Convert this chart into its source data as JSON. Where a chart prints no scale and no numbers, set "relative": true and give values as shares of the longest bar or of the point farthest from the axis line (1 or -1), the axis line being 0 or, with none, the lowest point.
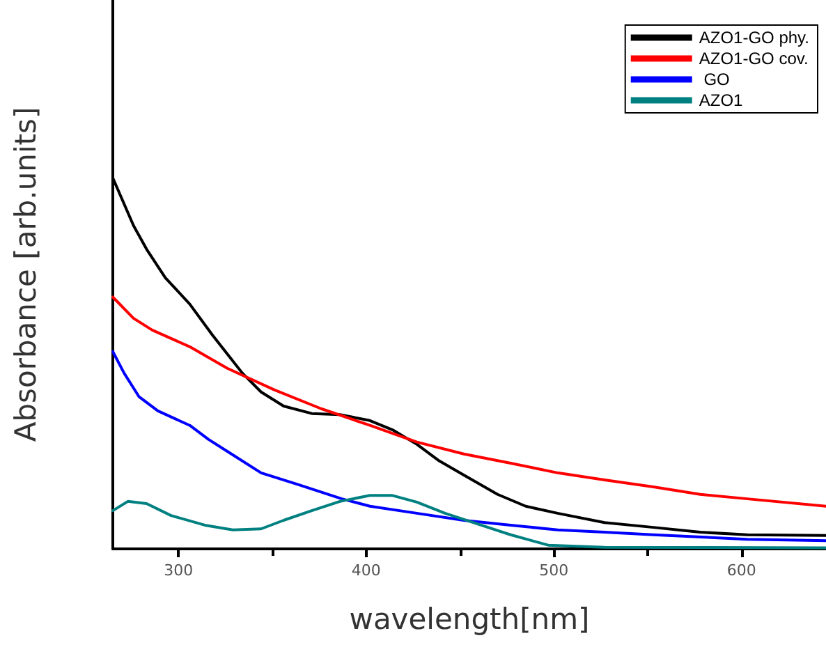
{
  "chart_data": {
    "type": "line",
    "relative": true,
    "xlabel": "wavelength[nm]",
    "ylabel": "Absorbance [arb.units]",
    "xlim": [
      265,
      645
    ],
    "xticks": [
      300,
      400,
      500,
      600
    ],
    "legend": "top right",
    "grid": false,
    "marker": "none",
    "line_style": "solid",
    "series": [
      {
        "name": "AZO1-GO phy.",
        "color": "#000000",
        "x": [
          265,
          276,
          283,
          293,
          306,
          318,
          334,
          344,
          356,
          371,
          386,
          402,
          414,
          427,
          439,
          452,
          470,
          485,
          502,
          527,
          553,
          578,
          603,
          645
        ],
        "values": [
          1.0,
          0.872,
          0.808,
          0.731,
          0.66,
          0.577,
          0.474,
          0.423,
          0.385,
          0.365,
          0.362,
          0.346,
          0.321,
          0.282,
          0.237,
          0.199,
          0.147,
          0.115,
          0.096,
          0.071,
          0.058,
          0.045,
          0.038,
          0.036
        ]
      },
      {
        "name": "AZO1-GO cov.",
        "color": "#ff0000",
        "x": [
          265,
          276,
          286,
          306,
          326,
          351,
          376,
          402,
          427,
          452,
          477,
          502,
          527,
          553,
          578,
          603,
          645
        ],
        "values": [
          0.679,
          0.622,
          0.59,
          0.545,
          0.487,
          0.429,
          0.378,
          0.333,
          0.288,
          0.256,
          0.231,
          0.205,
          0.186,
          0.167,
          0.147,
          0.135,
          0.115
        ]
      },
      {
        "name": " GO",
        "color": "#0000ff",
        "x": [
          265,
          271,
          279,
          289,
          306,
          316,
          326,
          344,
          364,
          387,
          402,
          427,
          452,
          477,
          502,
          527,
          553,
          603,
          645
        ],
        "values": [
          0.532,
          0.474,
          0.41,
          0.372,
          0.333,
          0.295,
          0.263,
          0.205,
          0.173,
          0.135,
          0.115,
          0.096,
          0.077,
          0.064,
          0.051,
          0.045,
          0.038,
          0.026,
          0.022
        ]
      },
      {
        "name": "AZO1",
        "color": "#008080",
        "x": [
          265,
          273,
          283,
          296,
          314,
          329,
          344,
          356,
          371,
          386,
          402,
          414,
          427,
          442,
          457,
          477,
          497,
          527,
          645
        ],
        "values": [
          0.103,
          0.128,
          0.122,
          0.09,
          0.064,
          0.051,
          0.054,
          0.077,
          0.103,
          0.128,
          0.144,
          0.144,
          0.126,
          0.096,
          0.071,
          0.038,
          0.01,
          0.004,
          0.003
        ]
      }
    ]
  }
}
